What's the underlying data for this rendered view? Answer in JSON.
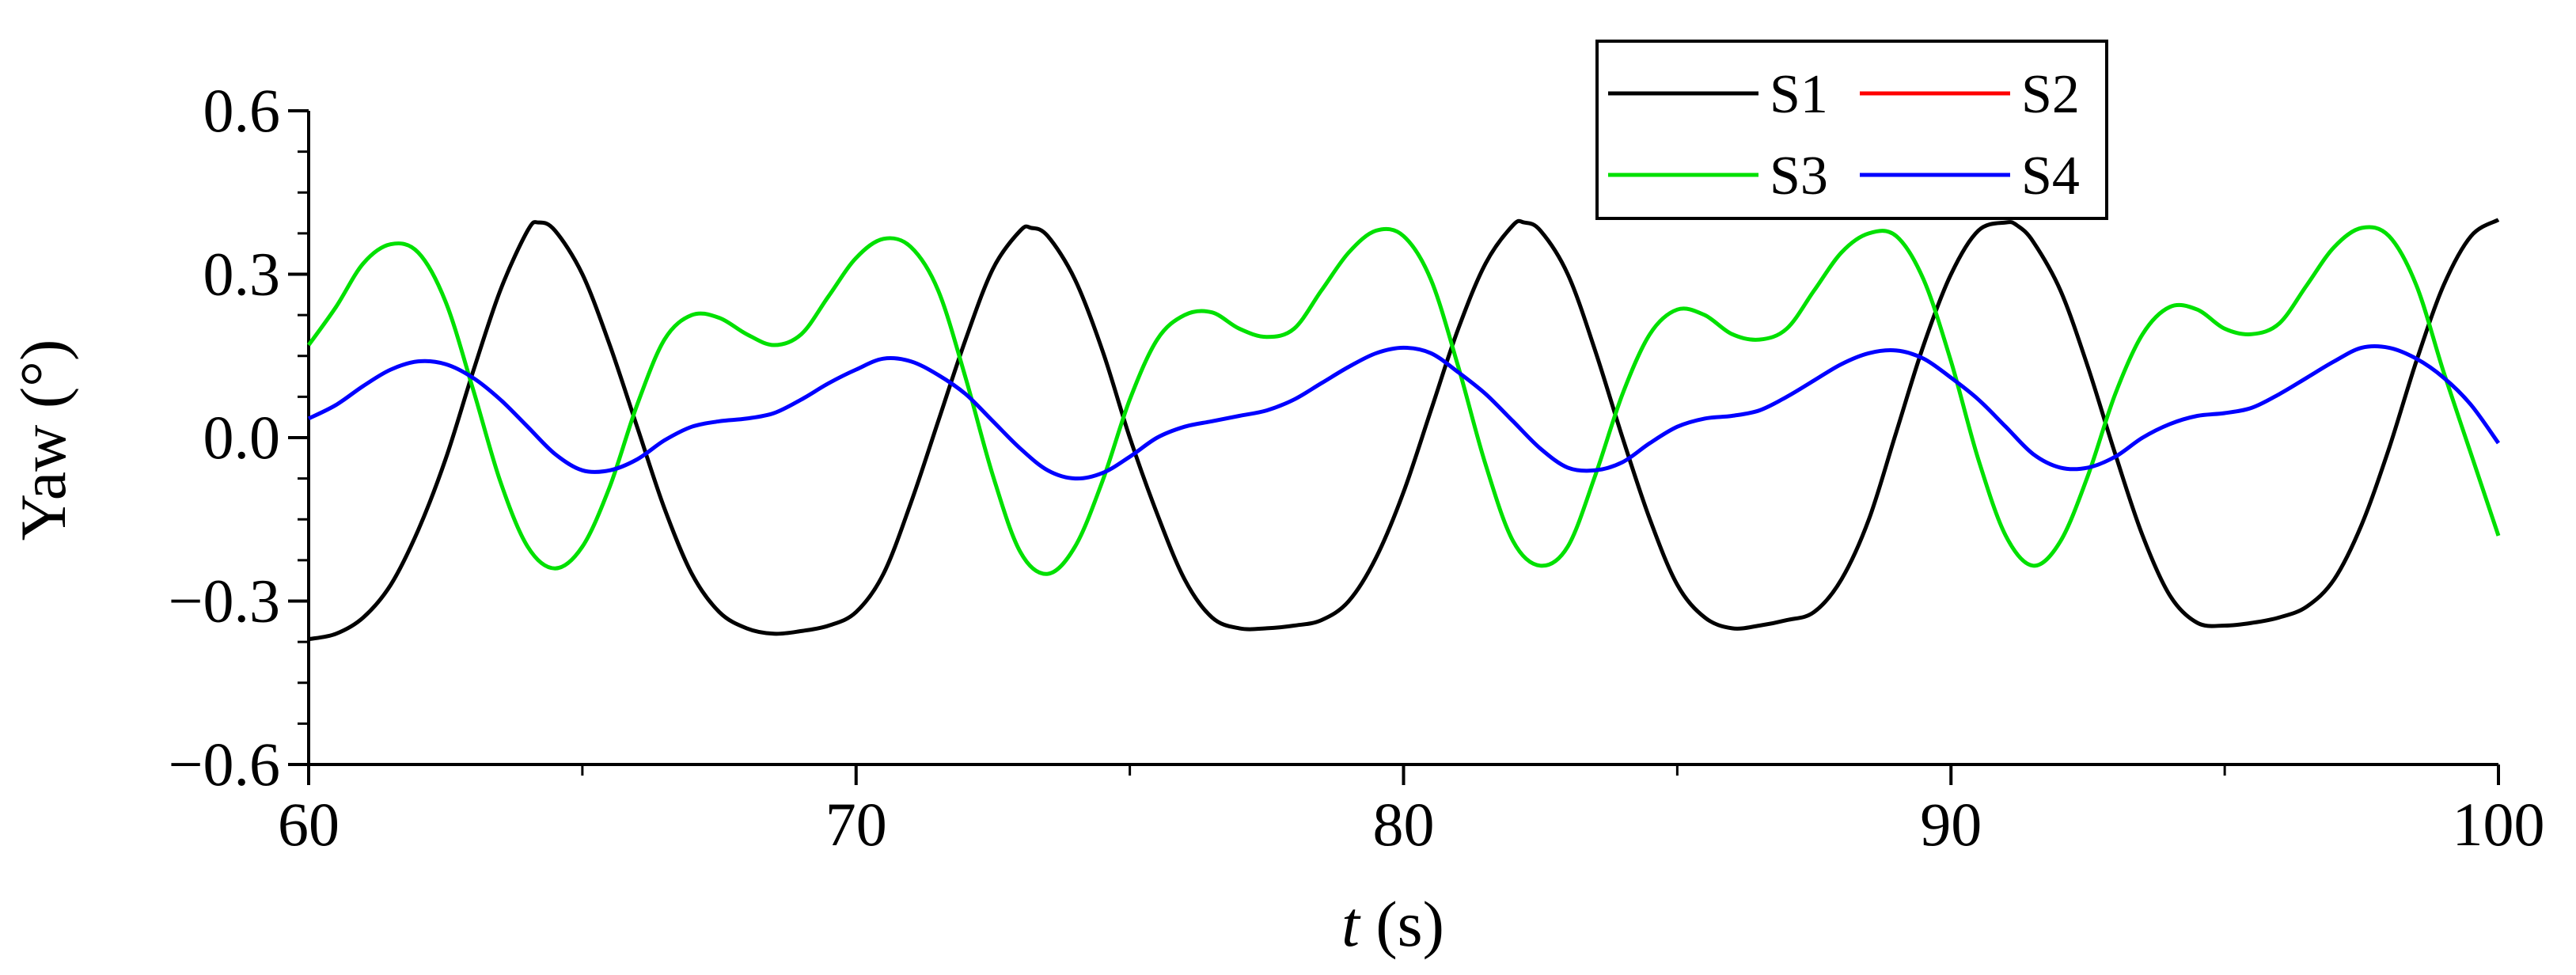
{
  "chart_data": {
    "type": "line",
    "xlabel_italic": "t",
    "xlabel_rest": " (s)",
    "ylabel": "Yaw (°)",
    "xlim": [
      60,
      100
    ],
    "ylim": [
      -0.6,
      0.6
    ],
    "x_ticks": [
      60,
      70,
      80,
      90,
      100
    ],
    "x_tick_labels": [
      "60",
      "70",
      "80",
      "90",
      "100"
    ],
    "y_ticks": [
      0.6,
      0.3,
      0.0,
      -0.3,
      -0.6
    ],
    "y_tick_labels": [
      "0.6",
      "0.3",
      "0.0",
      "−0.3",
      "−0.6"
    ],
    "grid": false,
    "legend_position": "top-right",
    "series": [
      {
        "name": "S1",
        "color": "#000000",
        "x": [
          60,
          60.5,
          61,
          61.5,
          62,
          62.5,
          63,
          63.5,
          64,
          64.2,
          64.5,
          65,
          65.5,
          66,
          66.5,
          67,
          67.5,
          68,
          68.5,
          69,
          69.5,
          70,
          70.5,
          71,
          71.5,
          72,
          72.5,
          73,
          73.2,
          73.5,
          74,
          74.5,
          75,
          75.5,
          76,
          76.5,
          77,
          77.5,
          78,
          78.5,
          79,
          79.5,
          80,
          80.5,
          81,
          81.5,
          82,
          82.2,
          82.5,
          83,
          83.5,
          84,
          84.5,
          85,
          85.5,
          86,
          86.5,
          87,
          87.5,
          88,
          88.5,
          89,
          89.5,
          90,
          90.5,
          91,
          91.2,
          91.5,
          92,
          92.5,
          93,
          93.5,
          94,
          94.5,
          95,
          95.5,
          96,
          96.5,
          97,
          97.5,
          98,
          98.5,
          99,
          99.5,
          100
        ],
        "y": [
          -0.37,
          -0.36,
          -0.33,
          -0.27,
          -0.17,
          -0.04,
          0.12,
          0.27,
          0.38,
          0.395,
          0.38,
          0.3,
          0.17,
          0.02,
          -0.13,
          -0.25,
          -0.32,
          -0.35,
          -0.36,
          -0.355,
          -0.345,
          -0.32,
          -0.25,
          -0.12,
          0.03,
          0.18,
          0.31,
          0.38,
          0.385,
          0.37,
          0.29,
          0.16,
          0.0,
          -0.14,
          -0.26,
          -0.33,
          -0.35,
          -0.35,
          -0.345,
          -0.335,
          -0.3,
          -0.22,
          -0.1,
          0.05,
          0.2,
          0.32,
          0.39,
          0.395,
          0.38,
          0.3,
          0.16,
          0.0,
          -0.15,
          -0.27,
          -0.33,
          -0.35,
          -0.345,
          -0.335,
          -0.32,
          -0.26,
          -0.15,
          0.01,
          0.17,
          0.3,
          0.38,
          0.395,
          0.39,
          0.36,
          0.27,
          0.13,
          -0.03,
          -0.18,
          -0.29,
          -0.34,
          -0.345,
          -0.34,
          -0.33,
          -0.31,
          -0.26,
          -0.16,
          -0.02,
          0.14,
          0.28,
          0.37,
          0.4
        ]
      },
      {
        "name": "S2",
        "color": "#ff0000",
        "x": [],
        "y": []
      },
      {
        "name": "S3",
        "color": "#00e000",
        "x": [
          60,
          60.5,
          61,
          61.5,
          62,
          62.5,
          63,
          63.5,
          64,
          64.5,
          65,
          65.5,
          66,
          66.5,
          67,
          67.5,
          68,
          68.5,
          69,
          69.5,
          70,
          70.5,
          71,
          71.5,
          72,
          72.5,
          73,
          73.5,
          74,
          74.5,
          75,
          75.5,
          76,
          76.5,
          77,
          77.5,
          78,
          78.5,
          79,
          79.5,
          80,
          80.5,
          81,
          81.5,
          82,
          82.5,
          83,
          83.5,
          84,
          84.5,
          85,
          85.5,
          86,
          86.5,
          87,
          87.5,
          88,
          88.5,
          89,
          89.5,
          90,
          90.5,
          91,
          91.5,
          92,
          92.5,
          93,
          93.5,
          94,
          94.5,
          95,
          95.5,
          96,
          96.5,
          97,
          97.5,
          98,
          98.5,
          99,
          99.5,
          100
        ],
        "y": [
          0.17,
          0.24,
          0.32,
          0.355,
          0.34,
          0.25,
          0.09,
          -0.08,
          -0.2,
          -0.24,
          -0.2,
          -0.09,
          0.06,
          0.18,
          0.225,
          0.22,
          0.19,
          0.17,
          0.19,
          0.26,
          0.33,
          0.365,
          0.35,
          0.27,
          0.11,
          -0.07,
          -0.21,
          -0.25,
          -0.2,
          -0.08,
          0.07,
          0.18,
          0.225,
          0.23,
          0.2,
          0.185,
          0.2,
          0.27,
          0.34,
          0.38,
          0.37,
          0.29,
          0.13,
          -0.05,
          -0.19,
          -0.235,
          -0.2,
          -0.07,
          0.08,
          0.19,
          0.235,
          0.225,
          0.19,
          0.18,
          0.2,
          0.27,
          0.34,
          0.375,
          0.37,
          0.29,
          0.14,
          -0.04,
          -0.18,
          -0.235,
          -0.19,
          -0.07,
          0.08,
          0.19,
          0.24,
          0.235,
          0.2,
          0.19,
          0.21,
          0.28,
          0.35,
          0.385,
          0.37,
          0.28,
          0.12,
          -0.03,
          -0.18
        ]
      },
      {
        "name": "S4",
        "color": "#0000ff",
        "x": [
          60,
          60.5,
          61,
          61.5,
          62,
          62.5,
          63,
          63.5,
          64,
          64.5,
          65,
          65.5,
          66,
          66.5,
          67,
          67.5,
          68,
          68.5,
          69,
          69.5,
          70,
          70.5,
          71,
          71.5,
          72,
          72.5,
          73,
          73.5,
          74,
          74.5,
          75,
          75.5,
          76,
          76.5,
          77,
          77.5,
          78,
          78.5,
          79,
          79.5,
          80,
          80.5,
          81,
          81.5,
          82,
          82.5,
          83,
          83.5,
          84,
          84.5,
          85,
          85.5,
          86,
          86.5,
          87,
          87.5,
          88,
          88.5,
          89,
          89.5,
          90,
          90.5,
          91,
          91.5,
          92,
          92.5,
          93,
          93.5,
          94,
          94.5,
          95,
          95.5,
          96,
          96.5,
          97,
          97.5,
          98,
          98.5,
          99,
          99.5,
          100
        ],
        "y": [
          0.035,
          0.06,
          0.095,
          0.125,
          0.14,
          0.135,
          0.11,
          0.07,
          0.02,
          -0.03,
          -0.06,
          -0.06,
          -0.04,
          -0.005,
          0.02,
          0.03,
          0.035,
          0.045,
          0.07,
          0.1,
          0.125,
          0.145,
          0.14,
          0.115,
          0.08,
          0.03,
          -0.02,
          -0.06,
          -0.075,
          -0.065,
          -0.035,
          0.0,
          0.02,
          0.03,
          0.04,
          0.05,
          0.07,
          0.1,
          0.13,
          0.155,
          0.165,
          0.155,
          0.12,
          0.08,
          0.03,
          -0.02,
          -0.055,
          -0.06,
          -0.045,
          -0.01,
          0.02,
          0.035,
          0.04,
          0.05,
          0.075,
          0.105,
          0.135,
          0.155,
          0.16,
          0.145,
          0.11,
          0.07,
          0.02,
          -0.03,
          -0.055,
          -0.055,
          -0.035,
          0.0,
          0.025,
          0.04,
          0.045,
          0.055,
          0.08,
          0.11,
          0.14,
          0.165,
          0.165,
          0.145,
          0.11,
          0.06,
          -0.01
        ]
      }
    ]
  }
}
